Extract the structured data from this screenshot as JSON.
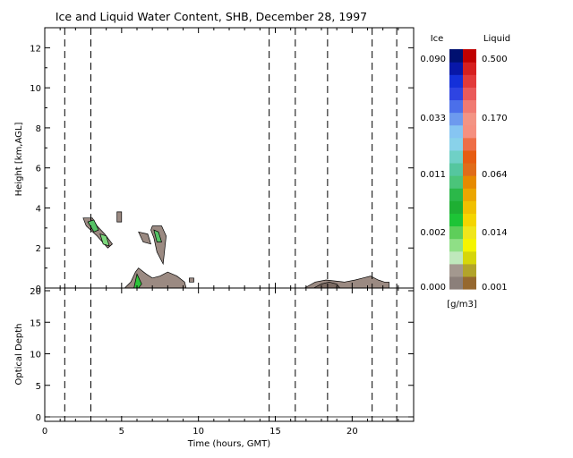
{
  "chart_data": [
    {
      "type": "heatmap",
      "title": "Ice and Liquid Water Content, SHB, December 28, 1997",
      "xlabel": "",
      "ylabel": "Height [km,AGL]",
      "xlim": [
        0,
        24
      ],
      "ylim": [
        0,
        13
      ],
      "yticks": [
        "0",
        "2",
        "4",
        "6",
        "8",
        "10",
        "12"
      ],
      "vertical_dashed_lines_hours": [
        1.3,
        3.0,
        14.6,
        16.3,
        18.4,
        21.3,
        22.9
      ],
      "regions": [
        {
          "name": "ice-upper-left",
          "phase": "ice",
          "x": [
            2.5,
            3.1,
            3.4,
            3.9,
            4.4,
            4.1,
            3.4,
            2.7
          ],
          "y": [
            3.5,
            3.5,
            3.1,
            2.7,
            2.2,
            2.0,
            2.6,
            3.1
          ],
          "color": "#9b8a82"
        },
        {
          "name": "liquid-upper-left-1",
          "phase": "liquid",
          "x": [
            2.8,
            3.2,
            3.5,
            3.2
          ],
          "y": [
            3.3,
            3.4,
            2.9,
            2.8
          ],
          "color": "#55c266"
        },
        {
          "name": "liquid-upper-left-2",
          "phase": "liquid",
          "x": [
            3.6,
            4.0,
            4.2,
            3.8
          ],
          "y": [
            2.7,
            2.6,
            2.1,
            2.2
          ],
          "color": "#7dd87d"
        },
        {
          "name": "ice-upper-mid-a",
          "phase": "ice",
          "x": [
            6.1,
            6.7,
            6.9,
            6.4
          ],
          "y": [
            2.8,
            2.7,
            2.2,
            2.3
          ],
          "color": "#9b8a82"
        },
        {
          "name": "ice-upper-mid-b",
          "phase": "ice",
          "x": [
            7.0,
            7.6,
            7.9,
            7.7,
            7.3,
            7.1,
            6.9
          ],
          "y": [
            3.1,
            3.1,
            2.6,
            1.2,
            1.8,
            2.5,
            2.9
          ],
          "color": "#9b8a82"
        },
        {
          "name": "liquid-upper-mid",
          "phase": "liquid",
          "x": [
            7.1,
            7.4,
            7.6,
            7.3
          ],
          "y": [
            2.9,
            2.8,
            2.3,
            2.3
          ],
          "color": "#55c266"
        },
        {
          "name": "ice-small-a",
          "phase": "ice",
          "x": [
            4.7,
            5.0,
            5.0,
            4.7
          ],
          "y": [
            3.8,
            3.8,
            3.3,
            3.3
          ],
          "color": "#9b8a82"
        },
        {
          "name": "ice-small-b",
          "phase": "ice",
          "x": [
            9.4,
            9.7,
            9.7,
            9.4
          ],
          "y": [
            0.5,
            0.5,
            0.3,
            0.3
          ],
          "color": "#9b8a82"
        },
        {
          "name": "ice-lower-mid",
          "phase": "ice",
          "x": [
            5.2,
            5.6,
            5.9,
            6.1,
            6.6,
            7.0,
            7.5,
            8.0,
            8.6,
            9.1,
            9.2,
            5.2
          ],
          "y": [
            0.0,
            0.3,
            0.8,
            1.0,
            0.7,
            0.5,
            0.6,
            0.8,
            0.6,
            0.3,
            0.0,
            0.0
          ],
          "color": "#9b8a82"
        },
        {
          "name": "liquid-lower-mid",
          "phase": "liquid",
          "x": [
            5.8,
            6.0,
            6.3,
            6.1
          ],
          "y": [
            0.0,
            0.7,
            0.2,
            0.0
          ],
          "color": "#2ec43b"
        },
        {
          "name": "ice-lower-right",
          "phase": "ice",
          "x": [
            16.9,
            17.6,
            18.3,
            19.5,
            20.2,
            20.7,
            21.2,
            21.7,
            22.1,
            22.4,
            22.4,
            16.9
          ],
          "y": [
            0.0,
            0.3,
            0.4,
            0.3,
            0.4,
            0.5,
            0.6,
            0.4,
            0.3,
            0.3,
            0.0,
            0.0
          ],
          "color": "#9b8a82"
        },
        {
          "name": "ice-lower-right-dark",
          "phase": "ice",
          "x": [
            17.5,
            18.0,
            18.5,
            19.0,
            19.2,
            18.0
          ],
          "y": [
            0.0,
            0.2,
            0.3,
            0.2,
            0.0,
            0.0
          ],
          "color": "#7b6a62"
        }
      ]
    },
    {
      "type": "line",
      "xlabel": "Time (hours, GMT)",
      "ylabel": "Optical Depth",
      "xlim": [
        0,
        24
      ],
      "ylim": [
        0,
        20
      ],
      "xticks": [
        "0",
        "5",
        "10",
        "15",
        "20"
      ],
      "yticks": [
        "0",
        "5",
        "10",
        "15",
        "20"
      ],
      "vertical_dashed_lines_hours": [
        1.3,
        3.0,
        14.6,
        16.3,
        18.4,
        21.3,
        22.9
      ],
      "series": [
        {
          "x": [
            0.0,
            24.0
          ],
          "values": [
            0.0,
            0.0
          ]
        }
      ]
    }
  ],
  "colorbar": {
    "ice_label": "Ice",
    "liquid_label": "Liquid",
    "units": "[g/m3]",
    "ice_tick_labels": [
      "0.090",
      "0.033",
      "0.011",
      "0.002",
      "0.000"
    ],
    "liquid_tick_labels": [
      "0.500",
      "0.170",
      "0.064",
      "0.014",
      "0.001"
    ],
    "ice_colors": [
      "#8b7f7a",
      "#a3988f",
      "#bfe8bc",
      "#8fdf86",
      "#5ece5a",
      "#1dc436",
      "#1eaf33",
      "#2bb849",
      "#4bc47a",
      "#55c69f",
      "#6fd0c6",
      "#89d2ea",
      "#86c5f2",
      "#6d9aee",
      "#4b6fea",
      "#2e44e2",
      "#1430d9",
      "#0817a8",
      "#001070"
    ],
    "liquid_colors": [
      "#96682f",
      "#b2a42a",
      "#d6d60a",
      "#f5f500",
      "#f0e61b",
      "#f4d500",
      "#f0c000",
      "#eba600",
      "#e68a00",
      "#e06c1a",
      "#e65c12",
      "#ee6e47",
      "#f59080",
      "#f39484",
      "#f07a72",
      "#ea5a5a",
      "#e23a3a",
      "#d61f1f",
      "#c00000"
    ]
  }
}
